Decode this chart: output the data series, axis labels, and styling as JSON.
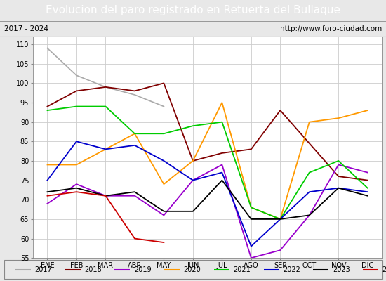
{
  "title": "Evolucion del paro registrado en Retuerta del Bullaque",
  "subtitle_left": "2017 - 2024",
  "subtitle_right": "http://www.foro-ciudad.com",
  "months": [
    "ENE",
    "FEB",
    "MAR",
    "ABR",
    "MAY",
    "JUN",
    "JUL",
    "AGO",
    "SEP",
    "OCT",
    "NOV",
    "DIC"
  ],
  "ylim": [
    55,
    112
  ],
  "yticks": [
    55,
    60,
    65,
    70,
    75,
    80,
    85,
    90,
    95,
    100,
    105,
    110
  ],
  "series": {
    "2017": {
      "color": "#aaaaaa",
      "linewidth": 1.2,
      "data": [
        109,
        102,
        99,
        97,
        94,
        null,
        null,
        null,
        null,
        null,
        null,
        null
      ]
    },
    "2018": {
      "color": "#800000",
      "linewidth": 1.3,
      "data": [
        94,
        98,
        99,
        98,
        100,
        80,
        82,
        83,
        93,
        null,
        76,
        75
      ]
    },
    "2019": {
      "color": "#9900cc",
      "linewidth": 1.3,
      "data": [
        69,
        74,
        71,
        71,
        66,
        75,
        79,
        55,
        57,
        66,
        79,
        77
      ]
    },
    "2020": {
      "color": "#ff9900",
      "linewidth": 1.3,
      "data": [
        79,
        79,
        null,
        87,
        74,
        80,
        95,
        68,
        65,
        90,
        91,
        93
      ]
    },
    "2021": {
      "color": "#00cc00",
      "linewidth": 1.3,
      "data": [
        93,
        94,
        94,
        87,
        87,
        89,
        90,
        68,
        65,
        77,
        80,
        73
      ]
    },
    "2022": {
      "color": "#0000cc",
      "linewidth": 1.3,
      "data": [
        75,
        85,
        83,
        84,
        80,
        75,
        77,
        58,
        65,
        72,
        73,
        72
      ]
    },
    "2023": {
      "color": "#000000",
      "linewidth": 1.3,
      "data": [
        72,
        73,
        71,
        72,
        67,
        67,
        75,
        65,
        65,
        66,
        73,
        71
      ]
    },
    "2024": {
      "color": "#cc0000",
      "linewidth": 1.3,
      "data": [
        71,
        72,
        71,
        60,
        59,
        null,
        null,
        null,
        null,
        null,
        null,
        null
      ]
    }
  },
  "fig_width": 5.5,
  "fig_height": 4.0,
  "fig_dpi": 100,
  "background_color": "#e8e8e8",
  "plot_bg_color": "#ffffff",
  "title_bg_color": "#4f81bd",
  "title_color": "#ffffff",
  "subtitle_bg_color": "#d8d8d8",
  "grid_color": "#cccccc",
  "title_fontsize": 11,
  "subtitle_fontsize": 7.5,
  "tick_fontsize": 7,
  "legend_fontsize": 7
}
